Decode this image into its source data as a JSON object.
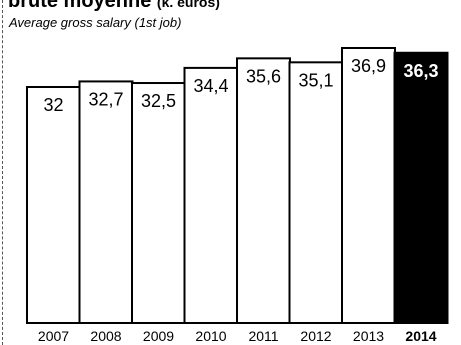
{
  "header": {
    "title_fr": "brute moyenne",
    "title_unit": "(k. euros)",
    "subtitle_en": "Average gross salary (1st job)"
  },
  "chart_data": {
    "type": "bar",
    "title": "brute moyenne (k. euros)",
    "subtitle": "Average gross salary (1st job)",
    "categories": [
      "2007",
      "2008",
      "2009",
      "2010",
      "2011",
      "2012",
      "2013",
      "2014"
    ],
    "values": [
      32.0,
      32.7,
      32.5,
      34.4,
      35.6,
      35.1,
      36.9,
      36.3
    ],
    "value_labels": [
      "32",
      "32,7",
      "32,5",
      "34,4",
      "35,6",
      "35,1",
      "36,9",
      "36,3"
    ],
    "highlight_category": "2014",
    "colors": {
      "bar_fill": "#ffffff",
      "bar_stroke": "#000000",
      "highlight_fill": "#000000",
      "highlight_text": "#ffffff"
    },
    "grid": false,
    "legend": "none"
  }
}
